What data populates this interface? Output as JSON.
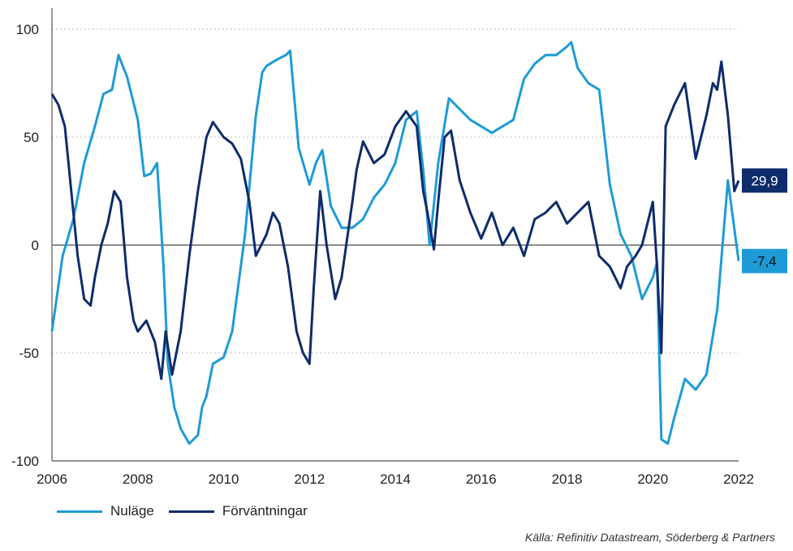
{
  "chart_data": {
    "type": "line",
    "xlim": [
      2006,
      2022
    ],
    "ylim": [
      -100,
      100
    ],
    "x_ticks": [
      "2006",
      "2008",
      "2010",
      "2012",
      "2014",
      "2016",
      "2018",
      "2020",
      "2022"
    ],
    "y_ticks": [
      "100",
      "50",
      "0",
      "-50",
      "-100"
    ],
    "x_tick_values": [
      2006,
      2008,
      2010,
      2012,
      2014,
      2016,
      2018,
      2020,
      2022
    ],
    "y_tick_values": [
      100,
      50,
      0,
      -50,
      -100
    ],
    "grid": "horizontal dotted",
    "legend_position": "bottom-left",
    "series": [
      {
        "name": "Nuläge",
        "color": "#1e9bd7",
        "end_label": "-7,4",
        "x": [
          2006.0,
          2006.25,
          2006.5,
          2006.75,
          2007.0,
          2007.2,
          2007.4,
          2007.55,
          2007.75,
          2008.0,
          2008.15,
          2008.3,
          2008.45,
          2008.6,
          2008.7,
          2008.85,
          2009.0,
          2009.2,
          2009.4,
          2009.5,
          2009.6,
          2009.75,
          2010.0,
          2010.2,
          2010.5,
          2010.75,
          2010.9,
          2011.0,
          2011.25,
          2011.45,
          2011.55,
          2011.75,
          2012.0,
          2012.15,
          2012.3,
          2012.5,
          2012.75,
          2013.0,
          2013.25,
          2013.5,
          2013.75,
          2014.0,
          2014.25,
          2014.5,
          2014.65,
          2014.8,
          2015.0,
          2015.25,
          2015.5,
          2015.75,
          2016.0,
          2016.25,
          2016.5,
          2016.75,
          2017.0,
          2017.25,
          2017.5,
          2017.75,
          2018.0,
          2018.1,
          2018.25,
          2018.5,
          2018.75,
          2019.0,
          2019.25,
          2019.5,
          2019.75,
          2020.0,
          2020.1,
          2020.2,
          2020.35,
          2020.5,
          2020.75,
          2021.0,
          2021.25,
          2021.5,
          2021.75,
          2022.0
        ],
        "y": [
          -40,
          -5,
          12,
          38,
          55,
          70,
          72,
          88,
          78,
          58,
          32,
          33,
          38,
          -10,
          -55,
          -75,
          -85,
          -92,
          -88,
          -75,
          -70,
          -55,
          -52,
          -40,
          5,
          60,
          80,
          83,
          86,
          88,
          90,
          45,
          28,
          38,
          44,
          18,
          8,
          8,
          12,
          22,
          28,
          38,
          58,
          62,
          35,
          0,
          38,
          68,
          63,
          58,
          55,
          52,
          55,
          58,
          77,
          84,
          88,
          88,
          92,
          94,
          82,
          75,
          72,
          28,
          5,
          -5,
          -25,
          -15,
          -8,
          -90,
          -92,
          -80,
          -62,
          -67,
          -60,
          -30,
          30,
          -7.4
        ]
      },
      {
        "name": "Förväntningar",
        "color": "#0d2c6b",
        "end_label": "29,9",
        "x": [
          2006.0,
          2006.15,
          2006.3,
          2006.45,
          2006.6,
          2006.75,
          2006.9,
          2007.0,
          2007.15,
          2007.3,
          2007.45,
          2007.6,
          2007.75,
          2007.9,
          2008.0,
          2008.2,
          2008.4,
          2008.55,
          2008.65,
          2008.8,
          2009.0,
          2009.2,
          2009.4,
          2009.6,
          2009.75,
          2010.0,
          2010.2,
          2010.4,
          2010.6,
          2010.75,
          2011.0,
          2011.15,
          2011.3,
          2011.5,
          2011.7,
          2011.85,
          2012.0,
          2012.1,
          2012.25,
          2012.4,
          2012.6,
          2012.75,
          2013.0,
          2013.1,
          2013.25,
          2013.5,
          2013.75,
          2014.0,
          2014.25,
          2014.5,
          2014.65,
          2014.75,
          2014.9,
          2015.0,
          2015.15,
          2015.3,
          2015.5,
          2015.75,
          2016.0,
          2016.25,
          2016.5,
          2016.75,
          2017.0,
          2017.25,
          2017.5,
          2017.75,
          2018.0,
          2018.25,
          2018.5,
          2018.75,
          2019.0,
          2019.25,
          2019.4,
          2019.6,
          2019.75,
          2020.0,
          2020.1,
          2020.2,
          2020.3,
          2020.5,
          2020.75,
          2021.0,
          2021.25,
          2021.4,
          2021.5,
          2021.6,
          2021.75,
          2021.9,
          2022.0
        ],
        "y": [
          70,
          65,
          55,
          25,
          -5,
          -25,
          -28,
          -15,
          0,
          10,
          25,
          20,
          -15,
          -35,
          -40,
          -35,
          -45,
          -62,
          -40,
          -60,
          -40,
          -5,
          25,
          50,
          57,
          50,
          47,
          40,
          20,
          -5,
          5,
          15,
          10,
          -10,
          -40,
          -50,
          -55,
          -20,
          25,
          0,
          -25,
          -15,
          20,
          35,
          48,
          38,
          42,
          55,
          62,
          55,
          25,
          15,
          -2,
          20,
          50,
          53,
          30,
          15,
          3,
          15,
          0,
          8,
          -5,
          12,
          15,
          20,
          10,
          15,
          20,
          -5,
          -10,
          -20,
          -10,
          -5,
          0,
          20,
          -10,
          -50,
          55,
          65,
          75,
          40,
          60,
          75,
          72,
          85,
          60,
          25,
          29.9
        ]
      }
    ],
    "source": "Källa: Refinitiv Datastream, Söderberg & Partners"
  }
}
